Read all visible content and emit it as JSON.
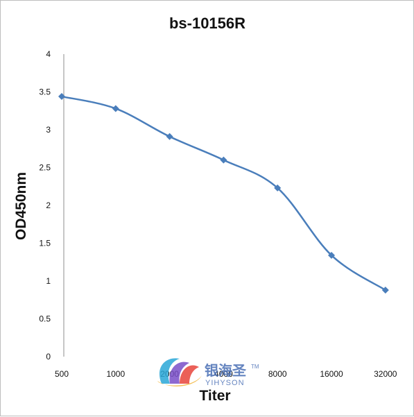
{
  "chart_data": {
    "type": "line",
    "title": "bs-10156R",
    "xlabel": "Titer",
    "ylabel": "OD450nm",
    "categories": [
      "500",
      "1000",
      "2000",
      "4000",
      "8000",
      "16000",
      "32000"
    ],
    "series": [
      {
        "values": [
          3.44,
          3.28,
          2.91,
          2.6,
          2.23,
          1.34,
          0.88
        ],
        "color": "#4a7ebb"
      }
    ],
    "ylim": [
      0,
      4
    ],
    "yticks": [
      "0",
      "0.5",
      "1",
      "1.5",
      "2",
      "2.5",
      "3",
      "3.5",
      "4"
    ],
    "grid": false,
    "legend": "none",
    "marker": "diamond",
    "smooth": true
  },
  "watermark": {
    "brand_cn": "银海圣",
    "brand_en": "YIHYSON",
    "trademark": "TM",
    "colors": [
      "#2aa7d8",
      "#7a4fc8",
      "#e8453c",
      "#f2b233"
    ]
  }
}
